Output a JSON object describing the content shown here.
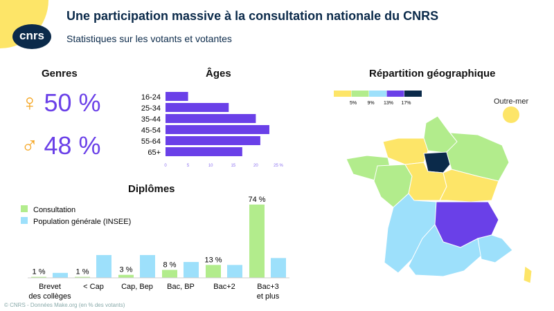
{
  "header": {
    "title": "Une participation massive à la consultation nationale du CNRS",
    "subtitle": "Statistiques sur les votants et votantes",
    "logo": "cnrs"
  },
  "genres": {
    "title": "Genres",
    "items": [
      {
        "icon": "female-symbol-icon",
        "symbol": "♀",
        "value": "50 %"
      },
      {
        "icon": "male-symbol-icon",
        "symbol": "♂",
        "value": "48 %"
      }
    ]
  },
  "chart_data": [
    {
      "type": "bar",
      "orientation": "horizontal",
      "title": "Âges",
      "categories": [
        "16-24",
        "25-34",
        "35-44",
        "45-54",
        "55-64",
        "65+"
      ],
      "values": [
        5,
        14,
        20,
        23,
        21,
        17
      ],
      "xlim": [
        0,
        25
      ],
      "xticks": [
        "0",
        "5",
        "10",
        "15",
        "20",
        "25 %"
      ],
      "color": "#6a40e8"
    },
    {
      "type": "bar",
      "title": "Diplômes",
      "categories": [
        "Brevet\ndes collèges",
        "< Cap",
        "Cap, Bep",
        "Bac, BP",
        "Bac+2",
        "Bac+3\net plus"
      ],
      "series": [
        {
          "name": "Consultation",
          "values": [
            1,
            1,
            3,
            8,
            13,
            74
          ],
          "labels": [
            "1 %",
            "1 %",
            "3 %",
            "8 %",
            "13 %",
            "74 %"
          ],
          "color": "#b2ec8c"
        },
        {
          "name": "Population générale (INSEE)",
          "values": [
            5,
            23,
            23,
            16,
            13,
            20
          ],
          "color": "#9de0fb"
        }
      ],
      "legend": "top-left"
    }
  ],
  "map": {
    "title": "Répartition géographique",
    "legend_ticks": [
      "5%",
      "9%",
      "13%",
      "17%"
    ],
    "legend_colors": [
      "#fde568",
      "#b2ec8c",
      "#9de0fb",
      "#6a40e8",
      "#0b2a4a"
    ],
    "outre_mer": "Outre-mer"
  },
  "footer": "© CNRS - Données Make.org (en % des votants)"
}
